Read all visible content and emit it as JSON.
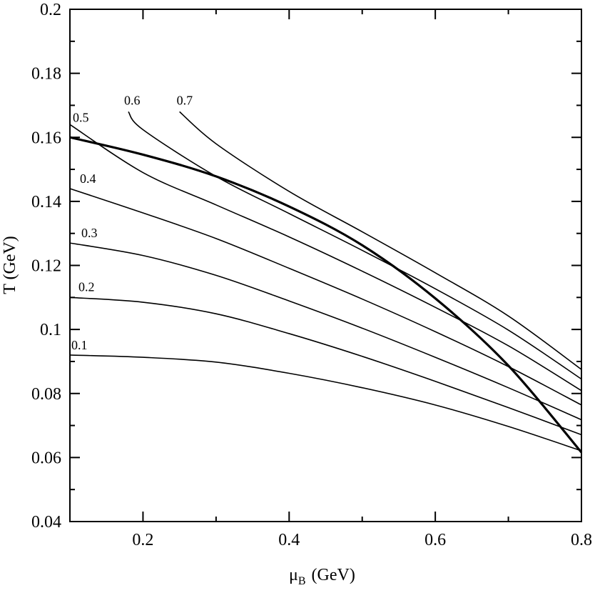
{
  "chart_data": {
    "type": "line",
    "xlabel": "μ",
    "xlabel_sub": "B",
    "xlabel_unit": "(GeV)",
    "ylabel": "T (GeV)",
    "xlim": [
      0.1,
      0.8
    ],
    "ylim": [
      0.04,
      0.2
    ],
    "x_ticks": [
      0.2,
      0.4,
      0.6,
      0.8
    ],
    "x_tick_labels": [
      "0.2",
      "0.4",
      "0.6",
      "0.8"
    ],
    "y_ticks": [
      0.04,
      0.06,
      0.08,
      0.1,
      0.12,
      0.14,
      0.16,
      0.18,
      0.2
    ],
    "y_tick_labels": [
      "0.04",
      "0.06",
      "0.08",
      "0.1",
      "0.12",
      "0.14",
      "0.16",
      "0.18",
      "0.2"
    ],
    "grid": false,
    "series": [
      {
        "name": "0.1",
        "x": [
          0.1,
          0.2,
          0.3,
          0.4,
          0.5,
          0.6,
          0.7,
          0.8
        ],
        "y": [
          0.092,
          0.0913,
          0.0898,
          0.0863,
          0.0818,
          0.0764,
          0.0697,
          0.0621
        ]
      },
      {
        "name": "0.2",
        "x": [
          0.1,
          0.2,
          0.3,
          0.4,
          0.5,
          0.6,
          0.7,
          0.8
        ],
        "y": [
          0.11,
          0.1085,
          0.1049,
          0.0987,
          0.0916,
          0.0838,
          0.0756,
          0.0671
        ]
      },
      {
        "name": "0.3",
        "x": [
          0.1,
          0.2,
          0.3,
          0.4,
          0.5,
          0.6,
          0.7,
          0.8
        ],
        "y": [
          0.127,
          0.1231,
          0.1169,
          0.1089,
          0.1004,
          0.0913,
          0.0818,
          0.0718
        ]
      },
      {
        "name": "0.4",
        "x": [
          0.1,
          0.2,
          0.3,
          0.4,
          0.5,
          0.6,
          0.7,
          0.8
        ],
        "y": [
          0.144,
          0.1364,
          0.1284,
          0.1191,
          0.1095,
          0.0993,
          0.0884,
          0.0764
        ]
      },
      {
        "name": "0.5",
        "x": [
          0.1,
          0.2,
          0.3,
          0.4,
          0.5,
          0.6,
          0.7,
          0.8
        ],
        "y": [
          0.164,
          0.149,
          0.1389,
          0.1289,
          0.1182,
          0.1069,
          0.0949,
          0.0809
        ]
      },
      {
        "name": "0.6",
        "x": [
          0.18,
          0.2,
          0.3,
          0.4,
          0.5,
          0.6,
          0.7,
          0.8
        ],
        "y": [
          0.168,
          0.1624,
          0.1478,
          0.1362,
          0.1247,
          0.1127,
          0.0998,
          0.0845
        ]
      },
      {
        "name": "0.7",
        "x": [
          0.25,
          0.3,
          0.4,
          0.5,
          0.6,
          0.7,
          0.8
        ],
        "y": [
          0.168,
          0.158,
          0.1431,
          0.1305,
          0.1177,
          0.1042,
          0.0875
        ]
      }
    ],
    "boundary": {
      "x": [
        0.1,
        0.2,
        0.3,
        0.4,
        0.5,
        0.6,
        0.7,
        0.8
      ],
      "y": [
        0.16,
        0.1546,
        0.1478,
        0.1384,
        0.1263,
        0.1097,
        0.0887,
        0.0616
      ]
    }
  }
}
